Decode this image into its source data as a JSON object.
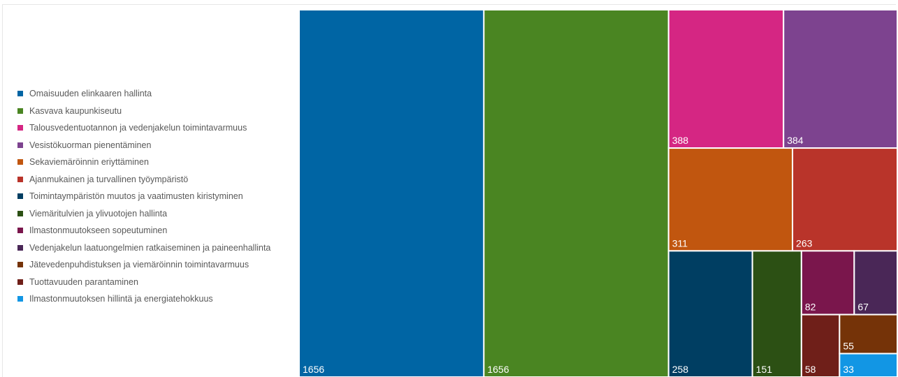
{
  "chart_data": {
    "type": "treemap",
    "series": [
      {
        "name": "Omaisuuden elinkaaren hallinta",
        "value": 1656,
        "color": "#0065a4"
      },
      {
        "name": "Kasvava kaupunkiseutu",
        "value": 1656,
        "color": "#4a8522"
      },
      {
        "name": "Talousvedentuotannon ja vedenjakelun toimintavarmuus",
        "value": 388,
        "color": "#d52683"
      },
      {
        "name": "Vesistökuorman pienentäminen",
        "value": 384,
        "color": "#7d438f"
      },
      {
        "name": "Sekaviemäröinnin eriyttäminen",
        "value": 311,
        "color": "#c1560f"
      },
      {
        "name": "Ajanmukainen ja turvallinen työympäristö",
        "value": 263,
        "color": "#b9342a"
      },
      {
        "name": "Toimintaympäristön muutos ja vaatimusten kiristyminen",
        "value": 258,
        "color": "#003e62"
      },
      {
        "name": "Viemäritulvien ja ylivuotojen hallinta",
        "value": 151,
        "color": "#2c5014"
      },
      {
        "name": "Ilmastonmuutokseen sopeutuminen",
        "value": 82,
        "color": "#7a164c"
      },
      {
        "name": "Vedenjakelun laatuongelmien ratkaiseminen ja paineenhallinta",
        "value": 67,
        "color": "#4a2757"
      },
      {
        "name": "Jätevedenpuhdistuksen ja viemäröinnin toimintavarmuus",
        "value": 55,
        "color": "#753308"
      },
      {
        "name": "Tuottavuuden parantaminen",
        "value": 58,
        "color": "#6f1f19"
      },
      {
        "name": "Ilmastonmuutoksen hillintä ja energiatehokkuus",
        "value": 33,
        "color": "#1296e4"
      }
    ],
    "legend_position": "left"
  }
}
